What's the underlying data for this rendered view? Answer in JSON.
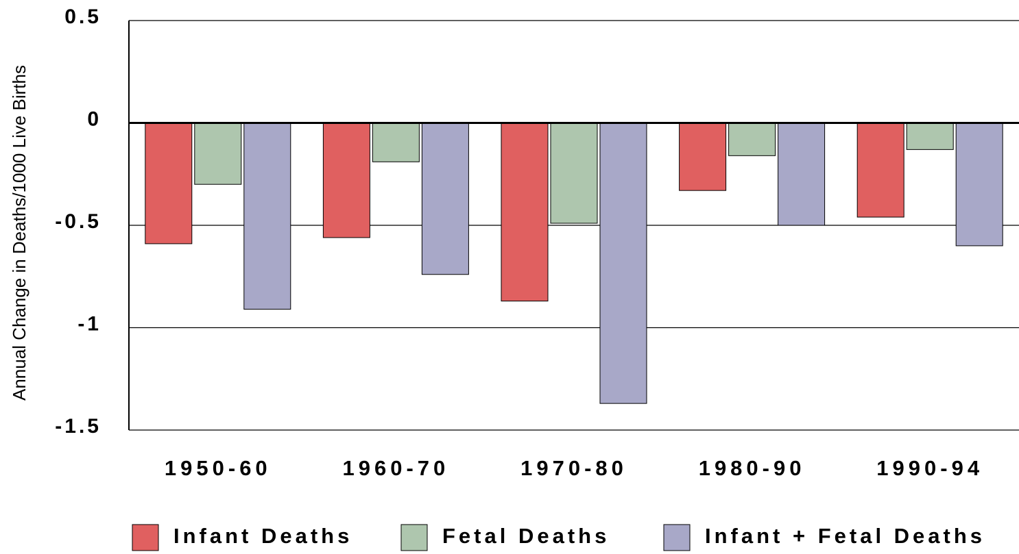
{
  "chart_data": {
    "type": "bar",
    "y_label": "Annual Change in Deaths/1000 Live Births",
    "categories": [
      "1950-60",
      "1960-70",
      "1970-80",
      "1980-90",
      "1990-94"
    ],
    "series": [
      {
        "name": "Infant Deaths",
        "color": "#e06060",
        "values": [
          -0.59,
          -0.56,
          -0.87,
          -0.33,
          -0.46
        ]
      },
      {
        "name": "Fetal Deaths",
        "color": "#aec6ae",
        "values": [
          -0.3,
          -0.19,
          -0.49,
          -0.16,
          -0.13
        ]
      },
      {
        "name": "Infant + Fetal Deaths",
        "color": "#a8a8c8",
        "values": [
          -0.91,
          -0.74,
          -1.37,
          -0.5,
          -0.6
        ]
      }
    ],
    "ylim": [
      -1.5,
      0.5
    ],
    "yticks": [
      -1.5,
      -1,
      -0.5,
      0,
      0.5
    ],
    "grid": true,
    "legend": "bottom"
  }
}
